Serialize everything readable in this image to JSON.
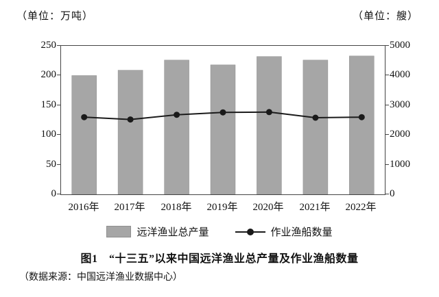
{
  "units": {
    "left": "（单位：万吨）",
    "right": "（单位：艘）"
  },
  "legend": [
    {
      "label": "远洋渔业总产量",
      "swatch": "bar"
    },
    {
      "label": "作业渔船数量",
      "swatch": "line-dot"
    }
  ],
  "caption": "图1　“十三五”以来中国远洋渔业总产量及作业渔船数量",
  "source": "（数据来源：中国远洋渔业数据中心）",
  "colors": {
    "bar": "#a6a6a6",
    "bar_border": "#8f8f8f",
    "line": "#1a1a1a",
    "axis": "#444444"
  },
  "chart_data": {
    "type": "bar",
    "subtype": "bar+line combo, dual axis",
    "title": "图1　“十三五”以来中国远洋渔业总产量及作业渔船数量",
    "categories": [
      "2016年",
      "2017年",
      "2018年",
      "2019年",
      "2020年",
      "2021年",
      "2022年"
    ],
    "series": [
      {
        "name": "远洋渔业总产量",
        "type": "bar",
        "axis": "left",
        "unit": "万吨",
        "values": [
          200,
          209,
          226,
          218,
          232,
          226,
          233
        ]
      },
      {
        "name": "作业渔船数量",
        "type": "line",
        "axis": "right",
        "unit": "艘",
        "values": [
          2600,
          2520,
          2680,
          2760,
          2770,
          2580,
          2600
        ]
      }
    ],
    "left_axis": {
      "label": "（单位：万吨）",
      "ticks": [
        0,
        50,
        100,
        150,
        200,
        250
      ],
      "range": [
        0,
        250
      ]
    },
    "right_axis": {
      "label": "（单位：艘）",
      "ticks": [
        0,
        1000,
        2000,
        3000,
        4000,
        5000
      ],
      "range": [
        0,
        5000
      ]
    },
    "grid": false,
    "legend_position": "bottom"
  }
}
